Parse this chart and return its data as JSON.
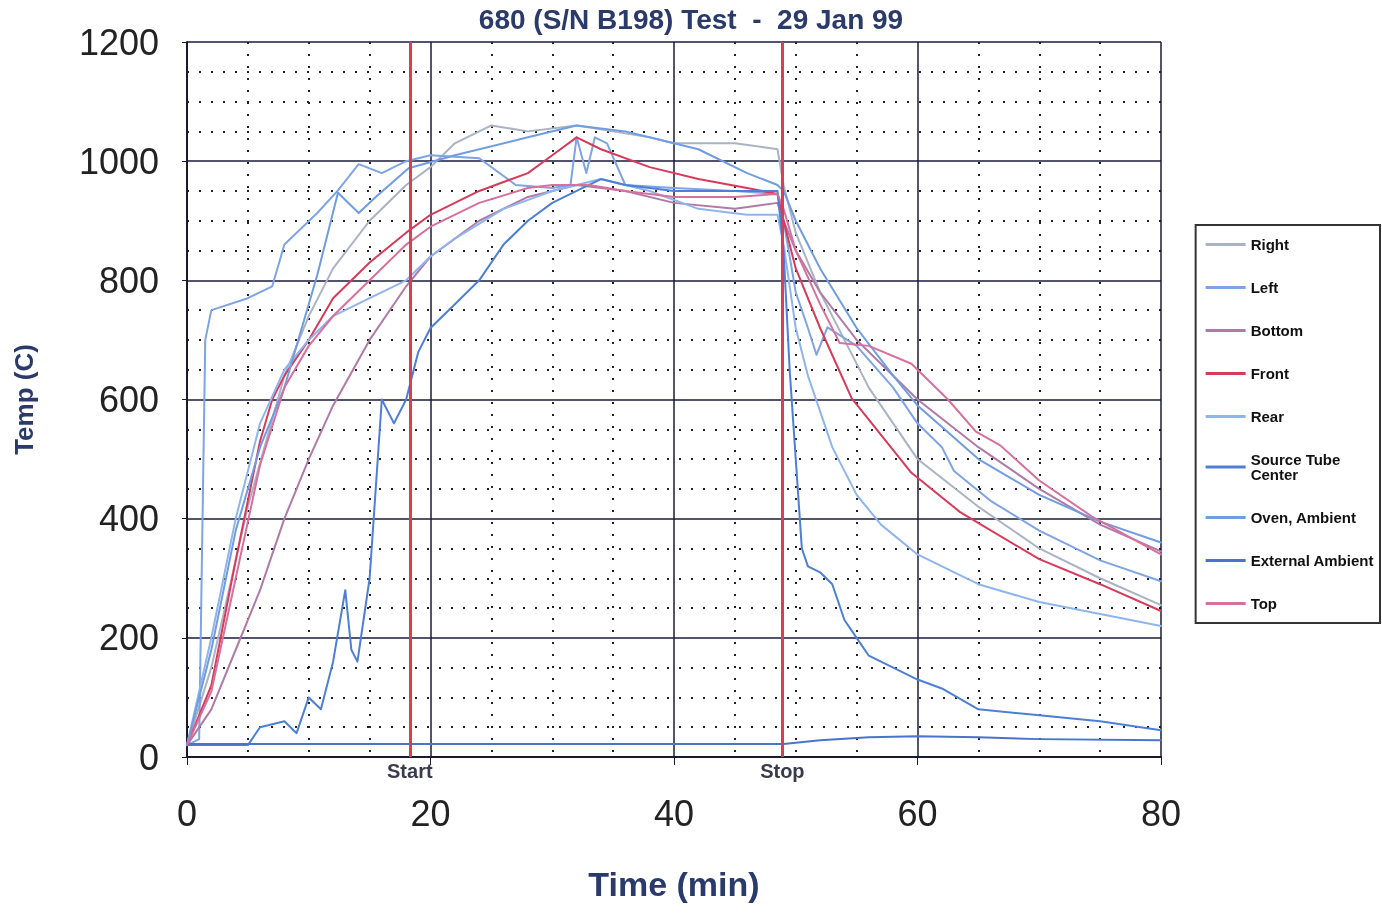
{
  "chart_data": {
    "type": "line",
    "title": "680 (S/N B198) Test  -  29 Jan 99",
    "xlabel": "Time (min)",
    "ylabel": "Temp (C)",
    "xlim": [
      0,
      80
    ],
    "xticks": [
      0,
      20,
      40,
      60,
      80
    ],
    "ylim": [
      0,
      1200
    ],
    "yticks": [
      0,
      200,
      400,
      600,
      800,
      1000,
      1200
    ],
    "grid": true,
    "legend": "right",
    "marker": "none",
    "line_style": "solid",
    "ref_lines": [
      {
        "axis": "x",
        "value": 18.3,
        "label": "Start",
        "color": "#d84050"
      },
      {
        "axis": "x",
        "value": 48.9,
        "label": "Stop",
        "color": "#d84050"
      }
    ],
    "series": [
      {
        "name": "Right",
        "color": "#aab2c4",
        "x": [
          0,
          2,
          5,
          8,
          10,
          12,
          15,
          18,
          20,
          22,
          25,
          28,
          32,
          35,
          38,
          40,
          45,
          48.5,
          49,
          50,
          52,
          54,
          56,
          58,
          60,
          65,
          70,
          75,
          80
        ],
        "values": [
          20,
          150,
          420,
          640,
          740,
          820,
          900,
          960,
          990,
          1030,
          1060,
          1050,
          1060,
          1050,
          1040,
          1030,
          1030,
          1020,
          960,
          880,
          780,
          700,
          620,
          560,
          500,
          420,
          350,
          300,
          255
        ]
      },
      {
        "name": "Left",
        "color": "#7ea4e4",
        "x": [
          0,
          1,
          1.5,
          2,
          5,
          7,
          8,
          10.7,
          12.4,
          14.1,
          16,
          18,
          20,
          24,
          27,
          30,
          31.5,
          32,
          32.8,
          33.5,
          34.5,
          36,
          40,
          45,
          48.5,
          49,
          50,
          51,
          51.7,
          52.6,
          55,
          58,
          60,
          62,
          63,
          66,
          70,
          75,
          80
        ],
        "values": [
          20,
          30,
          700,
          750,
          770,
          790,
          860,
          913,
          951,
          995,
          980,
          1000,
          1010,
          1005,
          960,
          955,
          960,
          1040,
          980,
          1040,
          1030,
          960,
          955,
          950,
          945,
          900,
          780,
          720,
          675,
          721,
          690,
          620,
          560,
          520,
          480,
          430,
          380,
          330,
          295
        ]
      },
      {
        "name": "Bottom",
        "color": "#b07aa8",
        "x": [
          0,
          2,
          4,
          6,
          8,
          10,
          12,
          15,
          18,
          20,
          24,
          28,
          32,
          36,
          40,
          45,
          48.5,
          49,
          50,
          52,
          55,
          60,
          65,
          70,
          75,
          80
        ],
        "values": [
          20,
          80,
          180,
          280,
          400,
          500,
          590,
          700,
          790,
          840,
          900,
          940,
          960,
          950,
          930,
          920,
          930,
          900,
          850,
          780,
          700,
          600,
          520,
          450,
          390,
          345
        ]
      },
      {
        "name": "Front",
        "color": "#d83a5a",
        "x": [
          0,
          2,
          4,
          6,
          7,
          8,
          10,
          12,
          15,
          18,
          20,
          24,
          28,
          30,
          32,
          34,
          38,
          42,
          46,
          48.5,
          49,
          50,
          52,
          54.6,
          59.5,
          63.5,
          70,
          75,
          80
        ],
        "values": [
          20,
          120,
          330,
          530,
          600,
          640,
          700,
          770,
          830,
          880,
          910,
          950,
          980,
          1010,
          1040,
          1020,
          990,
          970,
          955,
          945,
          900,
          820,
          720,
          602,
          477,
          411,
          332,
          290,
          245
        ]
      },
      {
        "name": "Rear",
        "color": "#90b4ec",
        "x": [
          0,
          2,
          4,
          6,
          8,
          10,
          12,
          15,
          18,
          20,
          22,
          26,
          30,
          34,
          38,
          42,
          46,
          48.5,
          49,
          50,
          51,
          53,
          55,
          57,
          60,
          65,
          70,
          75,
          80
        ],
        "values": [
          20,
          200,
          400,
          560,
          650,
          700,
          740,
          770,
          800,
          840,
          870,
          920,
          950,
          970,
          950,
          920,
          910,
          910,
          860,
          720,
          640,
          520,
          440,
          390,
          340,
          290,
          260,
          240,
          220
        ]
      },
      {
        "name": "Source Tube Center",
        "color": "#4d7fd6",
        "x": [
          0,
          5,
          6,
          8,
          9,
          10,
          11,
          12,
          13,
          13.5,
          14,
          15,
          16,
          17,
          18,
          19,
          20,
          22,
          24,
          26,
          28,
          30,
          32,
          34,
          36,
          40,
          45,
          48.5,
          49,
          49.5,
          50,
          50.5,
          51,
          52,
          53,
          54,
          55,
          56,
          58,
          60,
          62,
          65,
          70,
          75,
          80
        ],
        "values": [
          20,
          20,
          50,
          60,
          40,
          100,
          80,
          160,
          280,
          180,
          160,
          300,
          600,
          560,
          600,
          680,
          720,
          760,
          800,
          860,
          900,
          930,
          950,
          970,
          960,
          950,
          950,
          950,
          850,
          650,
          500,
          350,
          320,
          310,
          290,
          230,
          200,
          170,
          150,
          130,
          115,
          80,
          70,
          60,
          45
        ]
      },
      {
        "name": "Oven, Ambient",
        "color": "#6f9ce2",
        "x": [
          0,
          2,
          4,
          6,
          8,
          10.7,
          12.4,
          14.1,
          15.5,
          18.2,
          22,
          28,
          32,
          36,
          42,
          46,
          48.5,
          49,
          50,
          52,
          55,
          58,
          60,
          65,
          70,
          75,
          80
        ],
        "values": [
          20,
          180,
          380,
          520,
          620,
          809,
          947,
          913,
          940,
          988,
          1010,
          1040,
          1060,
          1050,
          1020,
          980,
          960,
          950,
          900,
          820,
          720,
          640,
          590,
          500,
          440,
          395,
          360
        ]
      },
      {
        "name": "External Ambient",
        "color": "#4a74cc",
        "x": [
          0,
          10,
          20,
          30,
          40,
          49,
          52,
          56,
          60,
          65,
          70,
          80
        ],
        "values": [
          22,
          22,
          22,
          22,
          22,
          22,
          28,
          33,
          35,
          33,
          30,
          28
        ]
      },
      {
        "name": "Top",
        "color": "#d8709c",
        "x": [
          0,
          2,
          4,
          6,
          8,
          10,
          12,
          15,
          18,
          20,
          24,
          28,
          30,
          33,
          36,
          40,
          45,
          48.5,
          49,
          50,
          52,
          53.6,
          56,
          59.5,
          62.5,
          64.8,
          66.8,
          70,
          74.3,
          80
        ],
        "values": [
          20,
          110,
          300,
          490,
          620,
          690,
          740,
          800,
          860,
          890,
          930,
          955,
          960,
          960,
          950,
          940,
          940,
          945,
          920,
          850,
          760,
          695,
          690,
          660,
          600,
          546,
          523,
          464,
          404,
          340
        ]
      }
    ]
  }
}
